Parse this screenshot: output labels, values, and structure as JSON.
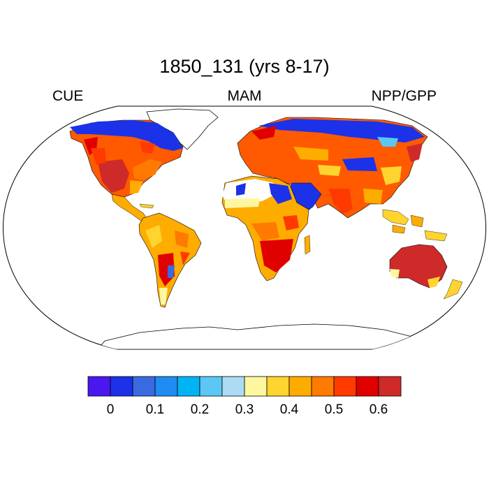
{
  "title": "1850_131 (yrs 8-17)",
  "left_label": "CUE",
  "center_label": "MAM",
  "right_label": "NPP/GPP",
  "colorbar": {
    "colors": [
      "#4a18ef",
      "#1b32e8",
      "#3b6ae0",
      "#1e8cf2",
      "#00b4f4",
      "#5cc6f4",
      "#acdcf4",
      "#fff7a0",
      "#ffd42e",
      "#ffac00",
      "#ff7a00",
      "#ff3a00",
      "#e00000",
      "#cf2a2a"
    ],
    "tick_labels": [
      "0",
      "0.1",
      "0.2",
      "0.3",
      "0.4",
      "0.5",
      "0.6"
    ],
    "tick_values": [
      0,
      0.1,
      0.2,
      0.3,
      0.4,
      0.5,
      0.6
    ],
    "min": -0.05,
    "max": 0.65
  }
}
